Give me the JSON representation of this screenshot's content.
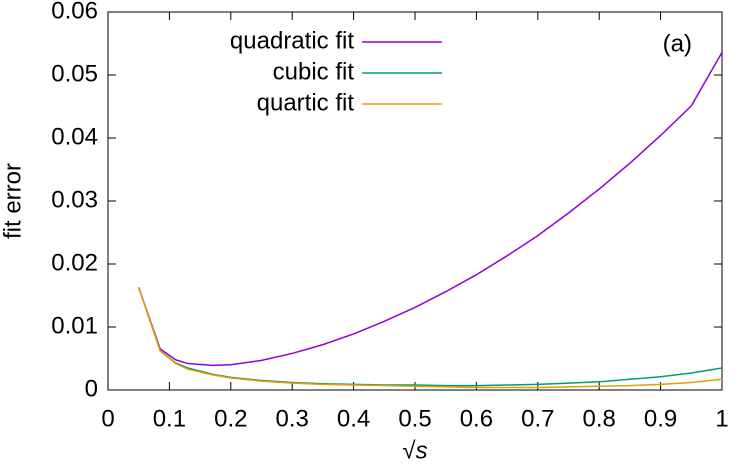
{
  "chart_data": {
    "type": "line",
    "xlabel": "√s",
    "ylabel": "fit error",
    "annotation": "(a)",
    "x": [
      0.05,
      0.085,
      0.11,
      0.13,
      0.17,
      0.2,
      0.25,
      0.3,
      0.35,
      0.4,
      0.45,
      0.5,
      0.55,
      0.6,
      0.65,
      0.7,
      0.75,
      0.8,
      0.85,
      0.9,
      0.95,
      1
    ],
    "series": [
      {
        "name": "quadratic fit",
        "color": "#9400d3",
        "values": [
          0.0163,
          0.0065,
          0.0048,
          0.0042,
          0.0039,
          0.004,
          0.0047,
          0.0058,
          0.0072,
          0.0089,
          0.0109,
          0.0131,
          0.0156,
          0.0183,
          0.0213,
          0.0245,
          0.0281,
          0.0319,
          0.036,
          0.0404,
          0.0451,
          0.0536
        ]
      },
      {
        "name": "cubic fit",
        "color": "#009e73",
        "values": [
          0.0163,
          0.0062,
          0.0043,
          0.0035,
          0.0025,
          0.002,
          0.0015,
          0.0012,
          0.001,
          0.0009,
          0.0008,
          0.0008,
          0.0007,
          0.0007,
          0.0008,
          0.0009,
          0.0011,
          0.0013,
          0.0017,
          0.0021,
          0.0027,
          0.0035
        ]
      },
      {
        "name": "quartic fit",
        "color": "#e69f00",
        "values": [
          0.0163,
          0.0062,
          0.0042,
          0.0033,
          0.0024,
          0.0019,
          0.0014,
          0.0011,
          0.0009,
          0.0008,
          0.0007,
          0.0006,
          0.0005,
          0.0004,
          0.0004,
          0.0004,
          0.0005,
          0.0006,
          0.0007,
          0.0009,
          0.0012,
          0.0017
        ]
      }
    ],
    "xlim": [
      0,
      1
    ],
    "xticks": [
      0,
      0.1,
      0.2,
      0.3,
      0.4,
      0.5,
      0.6,
      0.7,
      0.8,
      0.9,
      1
    ],
    "ylim": [
      0,
      0.06
    ],
    "yticks": [
      0,
      0.01,
      0.02,
      0.03,
      0.04,
      0.05,
      0.06
    ]
  }
}
